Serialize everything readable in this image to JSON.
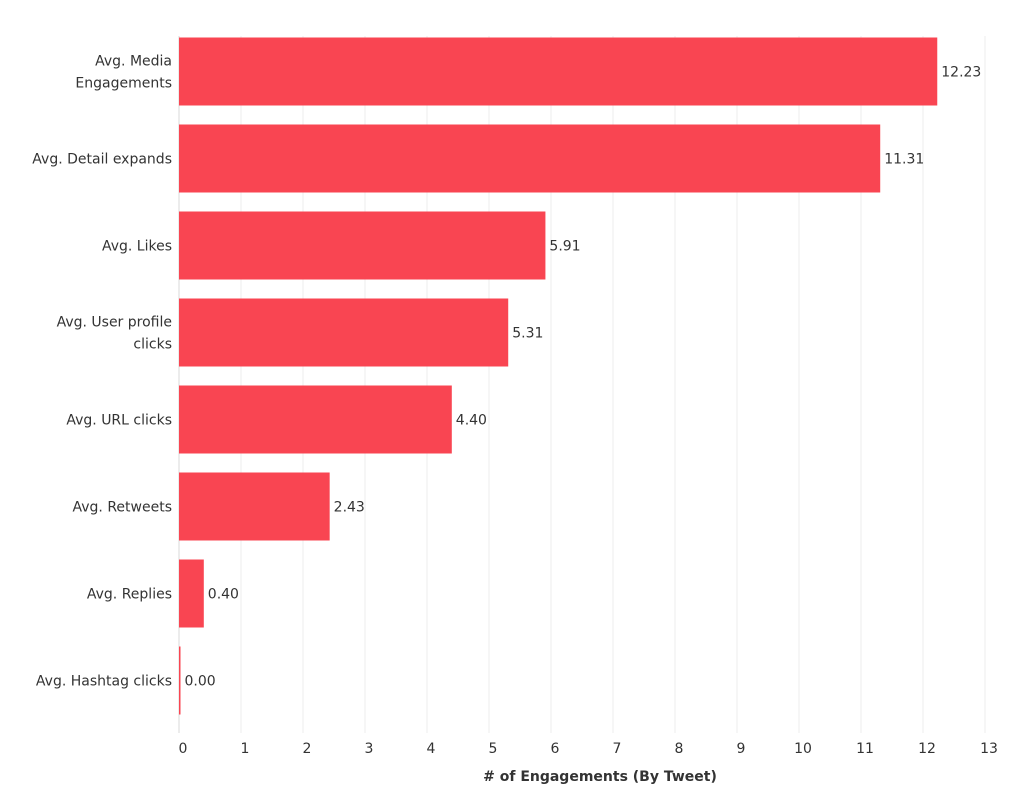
{
  "chart_data": {
    "type": "bar",
    "orientation": "horizontal",
    "categories": [
      "Avg. Media Engagements",
      "Avg. Detail expands",
      "Avg. Likes",
      "Avg. User profile clicks",
      "Avg. URL clicks",
      "Avg. Retweets",
      "Avg. Replies",
      "Avg. Hashtag clicks"
    ],
    "category_lines": [
      [
        "Avg. Media",
        "Engagements"
      ],
      [
        "Avg. Detail expands"
      ],
      [
        "Avg. Likes"
      ],
      [
        "Avg. User profile",
        "clicks"
      ],
      [
        "Avg. URL clicks"
      ],
      [
        "Avg. Retweets"
      ],
      [
        "Avg. Replies"
      ],
      [
        "Avg. Hashtag clicks"
      ]
    ],
    "values": [
      12.23,
      11.31,
      5.91,
      5.31,
      4.4,
      2.43,
      0.4,
      0.0
    ],
    "value_labels": [
      "12.23",
      "11.31",
      "5.91",
      "5.31",
      "4.40",
      "2.43",
      "0.40",
      "0.00"
    ],
    "xlabel": "# of Engagements (By Tweet)",
    "xlim": [
      0,
      13
    ],
    "xticks": [
      0,
      1,
      2,
      3,
      4,
      5,
      6,
      7,
      8,
      9,
      10,
      11,
      12,
      13
    ],
    "grid": true,
    "bar_color": "#f94552",
    "legend": "none"
  }
}
